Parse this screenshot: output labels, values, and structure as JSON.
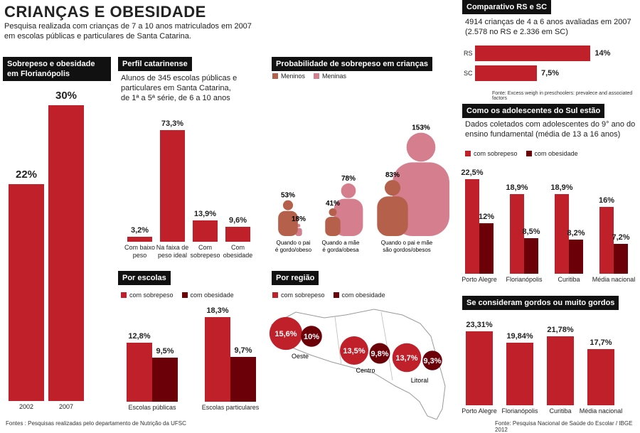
{
  "title": "CRIANÇAS E OBESIDADE",
  "subtitle": [
    "Pesquisa realizada com crianças de 7 a 10 anos matriculados em 2007",
    "em escolas públicas e particulares de Santa Catarina."
  ],
  "colors": {
    "sobrepeso": "#c0202a",
    "obesidade": "#6b0008",
    "meninos": "#b5604a",
    "meninas": "#d47e8e"
  },
  "sources": {
    "left": "Fontes : Pesquisas realizadas pelo departamento de Nutrição da UFSC",
    "right": "Fonte: Pesquisa Nacional de Saúde do Escolar / IBGE 2012",
    "rs_sc": "Fonte: Excess weigh in preschoolers: prevalece and associated factors"
  },
  "legend": {
    "sobrepeso": "com sobrepeso",
    "obesidade": "com obesidade",
    "meninos": "Meninos",
    "meninas": "Meninas"
  },
  "panels": {
    "floripa": {
      "header": [
        "Sobrepeso e obesidade",
        "em Florianópolis"
      ]
    },
    "perfil": {
      "header": "Perfil catarinense",
      "desc": [
        "Alunos de 345 escolas públicas e",
        "particulares em Santa Catarina,",
        "de 1ª a 5ª série, de 6 a 10 anos"
      ]
    },
    "prob": {
      "header": "Probabilidade de sobrepeso em crianças"
    },
    "rs_sc": {
      "header": "Comparativo RS e SC",
      "desc": [
        "4914 crianças de 4 a 6 anos avaliadas em 2007",
        "(2.578 no RS e 2.336 em SC)"
      ]
    },
    "adol": {
      "header": "Como os adolescentes do Sul estão",
      "desc": [
        "Dados coletados com adolescentes do 9° ano do",
        "ensino fundamental (média de 13 a 16 anos)"
      ]
    },
    "escolas": {
      "header": "Por escolas"
    },
    "regiao": {
      "header": "Por região"
    },
    "gordos": {
      "header": "Se consideram gordos ou muito gordos"
    }
  },
  "chart_data": [
    {
      "id": "floripa",
      "type": "bar",
      "categories": [
        "2002",
        "2007"
      ],
      "values": [
        22,
        30
      ],
      "value_labels": [
        "22%",
        "30%"
      ],
      "ylim": [
        0,
        30
      ]
    },
    {
      "id": "perfil",
      "type": "bar",
      "categories": [
        [
          "Com baixo",
          "peso"
        ],
        [
          "Na faixa de",
          "peso ideal"
        ],
        [
          "Com",
          "sobrepeso"
        ],
        [
          "Com",
          "obesidade"
        ]
      ],
      "values": [
        3.2,
        73.3,
        13.9,
        9.6
      ],
      "value_labels": [
        "3,2%",
        "73,3%",
        "13,9%",
        "9,6%"
      ]
    },
    {
      "id": "prob",
      "type": "bar",
      "categories": [
        [
          "Quando o pai",
          "é gordo/obeso"
        ],
        [
          "Quando a mãe",
          "é gorda/obesa"
        ],
        [
          "Quando o pai e mãe",
          "são gordos/obesos"
        ]
      ],
      "series": [
        {
          "name": "Meninos",
          "values": [
            53,
            41,
            83
          ],
          "value_labels": [
            "53%",
            "41%",
            "83%"
          ]
        },
        {
          "name": "Meninas",
          "values": [
            18,
            78,
            153
          ],
          "value_labels": [
            "18%",
            "78%",
            "153%"
          ]
        }
      ]
    },
    {
      "id": "rs_sc",
      "type": "bar",
      "orientation": "horizontal",
      "categories": [
        "RS",
        "SC"
      ],
      "values": [
        14,
        7.5
      ],
      "value_labels": [
        "14%",
        "7,5%"
      ]
    },
    {
      "id": "adol",
      "type": "bar",
      "categories": [
        "Porto Alegre",
        "Florianópolis",
        "Curitiba",
        "Média nacional"
      ],
      "series": [
        {
          "name": "com sobrepeso",
          "values": [
            22.5,
            18.9,
            18.9,
            16
          ],
          "value_labels": [
            "22,5%",
            "18,9%",
            "18,9%",
            "16%"
          ]
        },
        {
          "name": "com obesidade",
          "values": [
            12,
            8.5,
            8.2,
            7.2
          ],
          "value_labels": [
            "12%",
            "8,5%",
            "8,2%",
            "7,2%"
          ]
        }
      ]
    },
    {
      "id": "escolas",
      "type": "bar",
      "categories": [
        "Escolas públicas",
        "Escolas particulares"
      ],
      "series": [
        {
          "name": "com sobrepeso",
          "values": [
            12.8,
            18.3
          ],
          "value_labels": [
            "12,8%",
            "18,3%"
          ]
        },
        {
          "name": "com obesidade",
          "values": [
            9.5,
            9.7
          ],
          "value_labels": [
            "9,5%",
            "9,7%"
          ]
        }
      ]
    },
    {
      "id": "regiao",
      "type": "bubble",
      "categories": [
        "Oeste",
        "Centro",
        "Litoral"
      ],
      "series": [
        {
          "name": "com sobrepeso",
          "values": [
            15.6,
            13.5,
            13.7
          ],
          "value_labels": [
            "15,6%",
            "13,5%",
            "13,7%"
          ]
        },
        {
          "name": "com obesidade",
          "values": [
            10,
            9.8,
            9.3
          ],
          "value_labels": [
            "10%",
            "9,8%",
            "9,3%"
          ]
        }
      ]
    },
    {
      "id": "gordos",
      "type": "bar",
      "categories": [
        "Porto Alegre",
        "Florianópolis",
        "Curitiba",
        "Média nacional"
      ],
      "values": [
        23.31,
        19.84,
        21.78,
        17.7
      ],
      "value_labels": [
        "23,31%",
        "19,84%",
        "21,78%",
        "17,7%"
      ]
    }
  ]
}
